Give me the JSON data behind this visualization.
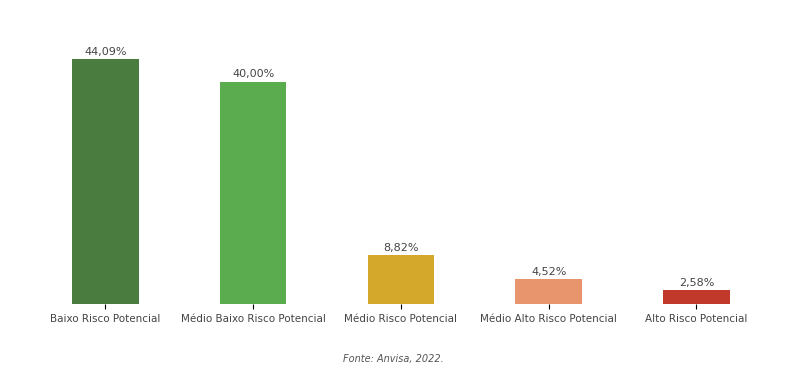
{
  "categories": [
    "Baixo Risco Potencial",
    "Médio Baixo Risco Potencial",
    "Médio Risco Potencial",
    "Médio Alto Risco Potencial",
    "Alto Risco Potencial"
  ],
  "values": [
    44.09,
    40.0,
    8.82,
    4.52,
    2.58
  ],
  "labels": [
    "44,09%",
    "40,00%",
    "8,82%",
    "4,52%",
    "2,58%"
  ],
  "bar_colors": [
    "#4a7c3f",
    "#5aac4e",
    "#d4a82a",
    "#e8956d",
    "#c0392b"
  ],
  "background_color": "#ffffff",
  "fonte_text": "Fonte: Anvisa, 2022.",
  "ylim": [
    0,
    50
  ],
  "label_fontsize": 8,
  "tick_fontsize": 7.5,
  "fonte_fontsize": 7,
  "bar_width": 0.45
}
